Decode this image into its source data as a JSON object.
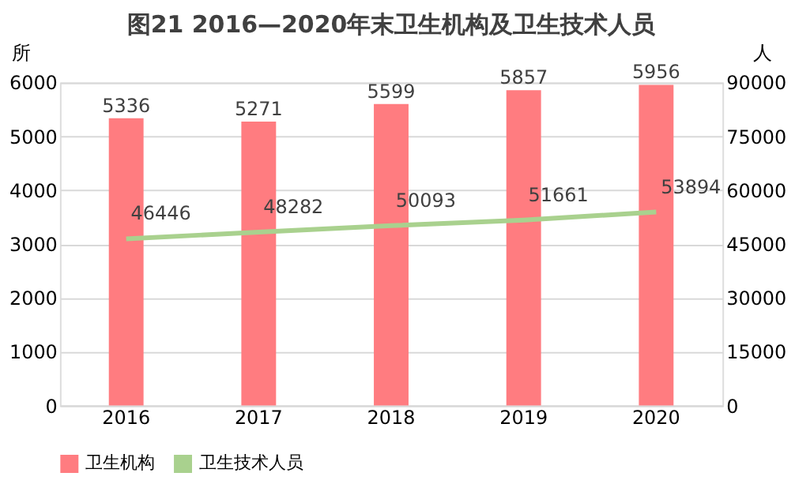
{
  "chart_data": {
    "type": "bar",
    "title": "图21 2016—2020年末卫生机构及卫生技术人员",
    "categories": [
      "2016",
      "2017",
      "2018",
      "2019",
      "2020"
    ],
    "ylabel": "所",
    "y2label": "人",
    "series": [
      {
        "name": "卫生机构",
        "color": "#ff7c80",
        "values": [
          5336,
          5271,
          5599,
          5857,
          5956
        ]
      },
      {
        "name": "卫生技术人员",
        "type": "line",
        "axis": "y2",
        "color": "#a9d18e",
        "values": [
          46446,
          48282,
          50093,
          51661,
          53894
        ]
      }
    ],
    "ylim": [
      0,
      6000
    ],
    "yticks": [
      0,
      1000,
      2000,
      3000,
      4000,
      5000,
      6000
    ],
    "y2lim": [
      0,
      90000
    ],
    "y2ticks": [
      0,
      15000,
      30000,
      45000,
      60000,
      75000,
      90000
    ],
    "data_labels": true,
    "grid": "y",
    "legend": "bottom",
    "marker": "none"
  }
}
